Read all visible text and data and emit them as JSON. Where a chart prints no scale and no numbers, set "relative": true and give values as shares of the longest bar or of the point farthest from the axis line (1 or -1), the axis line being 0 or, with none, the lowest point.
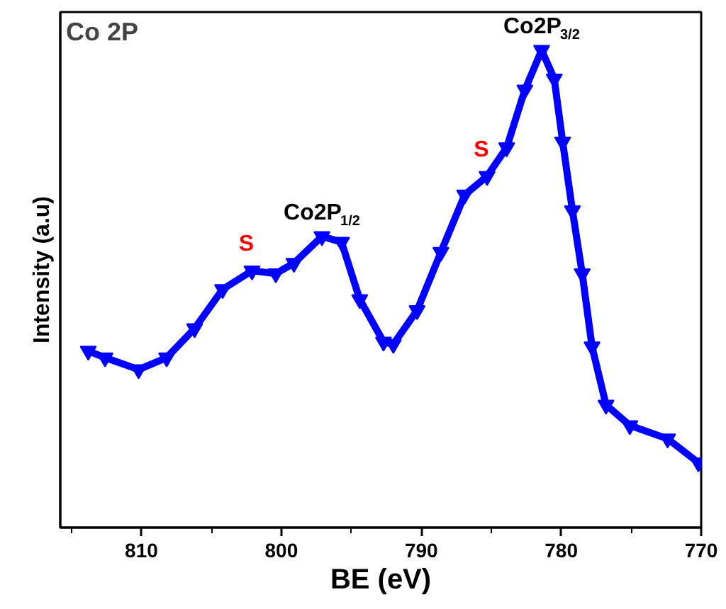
{
  "chart_data": {
    "type": "line",
    "title": "Co 2P",
    "xlabel": "BE (eV)",
    "ylabel": "Intensity (a.u)",
    "relative": true,
    "xlim": [
      815.8,
      770
    ],
    "xticks": [
      810,
      800,
      790,
      780,
      770
    ],
    "grid": false,
    "marker": "triangle",
    "line_style": "solid",
    "x": [
      813.8,
      812.6,
      810.2,
      808.2,
      806.2,
      804.2,
      802.1,
      800.4,
      799.1,
      797.1,
      795.7,
      794.4,
      792.7,
      792.0,
      790.3,
      788.6,
      786.9,
      785.3,
      783.9,
      782.6,
      781.4,
      780.5,
      779.9,
      779.2,
      778.5,
      777.8,
      776.8,
      775.1,
      772.4,
      770.2
    ],
    "series": [
      {
        "color": "#0000ff",
        "values": [
          0.37,
          0.356,
          0.331,
          0.356,
          0.417,
          0.499,
          0.538,
          0.532,
          0.554,
          0.61,
          0.598,
          0.478,
          0.389,
          0.384,
          0.455,
          0.577,
          0.697,
          0.736,
          0.796,
          0.917,
          1.0,
          0.94,
          0.808,
          0.664,
          0.532,
          0.379,
          0.257,
          0.214,
          0.186,
          0.136
        ]
      }
    ],
    "annotations": [
      {
        "text": "S",
        "x": 802.1,
        "y": 0.538
      },
      {
        "text": "Co2P$_{1/2}$",
        "x": 797.1,
        "y": 0.61
      },
      {
        "text": "S",
        "x": 785.3,
        "y": 0.736
      },
      {
        "text": "Co2P$_{3/2}$",
        "x": 781.4,
        "y": 1.0
      }
    ]
  }
}
